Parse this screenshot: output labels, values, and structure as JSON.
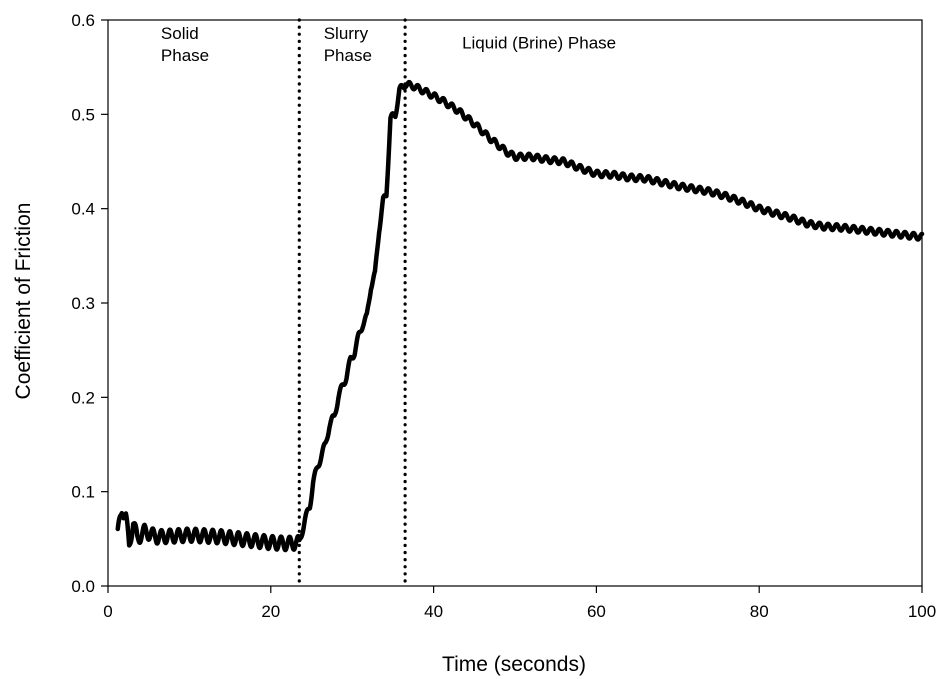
{
  "chart_data": {
    "type": "line",
    "title": "",
    "xlabel": "Time (seconds)",
    "ylabel": "Coefficient of Friction",
    "xlim": [
      0,
      100
    ],
    "ylim": [
      0.0,
      0.6
    ],
    "grid": false,
    "legend": "none",
    "x_ticks": [
      "0",
      "20",
      "40",
      "60",
      "80",
      "100"
    ],
    "y_ticks": [
      "0.0",
      "0.1",
      "0.2",
      "0.3",
      "0.4",
      "0.5",
      "0.6"
    ],
    "phase_boundaries": [
      23.5,
      36.5
    ],
    "annotations": [
      {
        "lines": [
          "Solid",
          "Phase"
        ],
        "x": 6.5,
        "y": 0.58
      },
      {
        "lines": [
          "Slurry",
          "Phase"
        ],
        "x": 26.5,
        "y": 0.58
      },
      {
        "lines": [
          "Liquid (Brine) Phase"
        ],
        "x": 43.5,
        "y": 0.57
      }
    ],
    "series": [
      {
        "color": "#000000",
        "points": [
          [
            1.2,
            0.055
          ],
          [
            1.7,
            0.082
          ],
          [
            2.2,
            0.073
          ],
          [
            2.6,
            0.042
          ],
          [
            3.1,
            0.068
          ],
          [
            3.6,
            0.05
          ],
          [
            4.5,
            0.058
          ],
          [
            6,
            0.052
          ],
          [
            8,
            0.053
          ],
          [
            10,
            0.054
          ],
          [
            12,
            0.053
          ],
          [
            14,
            0.052
          ],
          [
            16,
            0.05
          ],
          [
            18,
            0.048
          ],
          [
            20,
            0.046
          ],
          [
            22,
            0.045
          ],
          [
            23.5,
            0.046
          ],
          [
            24.2,
            0.07
          ],
          [
            24.8,
            0.085
          ],
          [
            25.2,
            0.11
          ],
          [
            25.8,
            0.128
          ],
          [
            26.3,
            0.14
          ],
          [
            26.7,
            0.15
          ],
          [
            27.2,
            0.17
          ],
          [
            27.8,
            0.18
          ],
          [
            28.3,
            0.2
          ],
          [
            28.8,
            0.212
          ],
          [
            29.3,
            0.222
          ],
          [
            29.8,
            0.24
          ],
          [
            30.3,
            0.248
          ],
          [
            30.8,
            0.265
          ],
          [
            31.3,
            0.278
          ],
          [
            31.8,
            0.285
          ],
          [
            32.3,
            0.318
          ],
          [
            32.8,
            0.33
          ],
          [
            33.3,
            0.378
          ],
          [
            33.8,
            0.408
          ],
          [
            34.2,
            0.415
          ],
          [
            34.7,
            0.495
          ],
          [
            35.3,
            0.5
          ],
          [
            35.8,
            0.525
          ],
          [
            36.5,
            0.532
          ],
          [
            37.5,
            0.53
          ],
          [
            39,
            0.524
          ],
          [
            41,
            0.515
          ],
          [
            43,
            0.504
          ],
          [
            45,
            0.49
          ],
          [
            47,
            0.474
          ],
          [
            49,
            0.46
          ],
          [
            50,
            0.455
          ],
          [
            52,
            0.455
          ],
          [
            54,
            0.452
          ],
          [
            56,
            0.45
          ],
          [
            58,
            0.443
          ],
          [
            60,
            0.437
          ],
          [
            62,
            0.436
          ],
          [
            64,
            0.433
          ],
          [
            66,
            0.432
          ],
          [
            68,
            0.428
          ],
          [
            70,
            0.424
          ],
          [
            72,
            0.421
          ],
          [
            74,
            0.418
          ],
          [
            76,
            0.413
          ],
          [
            78,
            0.407
          ],
          [
            80,
            0.4
          ],
          [
            82,
            0.395
          ],
          [
            84,
            0.39
          ],
          [
            86,
            0.384
          ],
          [
            88,
            0.381
          ],
          [
            90,
            0.38
          ],
          [
            92,
            0.378
          ],
          [
            94,
            0.376
          ],
          [
            96,
            0.374
          ],
          [
            98,
            0.372
          ],
          [
            100,
            0.37
          ]
        ]
      }
    ]
  }
}
